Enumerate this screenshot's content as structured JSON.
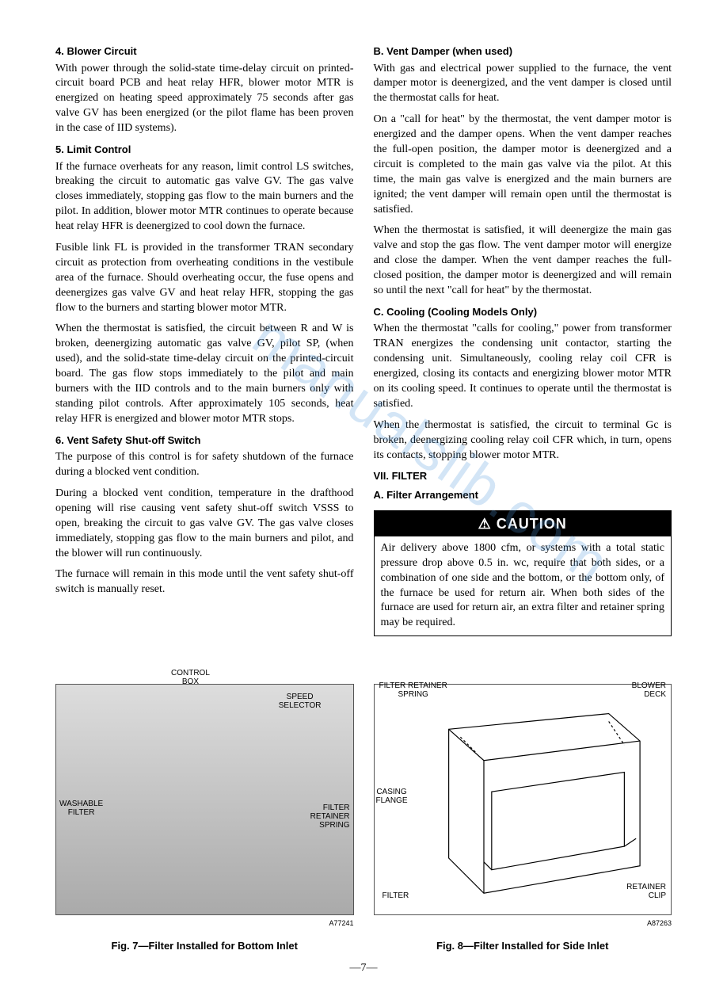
{
  "left": {
    "h4": "4. Blower Circuit",
    "p4": "With power through the solid-state time-delay circuit on printed-circuit board PCB and heat relay HFR, blower motor MTR is energized on heating speed approximately 75 seconds after gas valve GV has been energized (or the pilot flame has been proven in the case of IID systems).",
    "h5": "5. Limit Control",
    "p5a": "If the furnace overheats for any reason, limit control LS switches, breaking the circuit to automatic gas valve GV. The gas valve closes immediately, stopping gas flow to the main burners and the pilot. In addition, blower motor MTR continues to operate because heat relay HFR is deenergized to cool down the furnace.",
    "p5b": "Fusible link FL is provided in the transformer TRAN secondary circuit as protection from overheating conditions in the vestibule area of the furnace. Should overheating occur, the fuse opens and deenergizes gas valve GV and heat relay HFR, stopping the gas flow to the burners and starting blower motor MTR.",
    "p5c": "When the thermostat is satisfied, the circuit between R and W is broken, deenergizing automatic gas valve GV, pilot SP, (when used), and the solid-state time-delay circuit on the printed-circuit board. The gas flow stops immediately to the pilot and main burners with the IID controls and to the main burners only with standing pilot controls. After approximately 105 seconds, heat relay HFR is energized and blower motor MTR stops.",
    "h6": "6. Vent Safety Shut-off Switch",
    "p6a": "The purpose of this control is for safety shutdown of the furnace during a blocked vent condition.",
    "p6b": "During a blocked vent condition, temperature in the drafthood opening will rise causing vent safety shut-off switch VSSS to open, breaking the circuit to gas valve GV. The gas valve closes immediately, stopping gas flow to the main burners and pilot, and the blower will run continuously.",
    "p6c": "The furnace will remain in this mode until the vent safety shut-off switch is manually reset."
  },
  "right": {
    "hB": "B. Vent Damper (when used)",
    "pBa": "With gas and electrical power supplied to the furnace, the vent damper motor is deenergized, and the vent damper is closed until the thermostat calls for heat.",
    "pBb": "On a \"call for heat\" by the thermostat, the vent damper motor is energized and the damper opens. When the vent damper reaches the full-open position, the damper motor is deenergized and a circuit is completed to the main gas valve via the pilot. At this time, the main gas valve is energized and the main burners are ignited; the vent damper will remain open until the thermostat is satisfied.",
    "pBc": "When the thermostat is satisfied, it will deenergize the main gas valve and stop the gas flow. The vent damper motor will energize and close the damper. When the vent damper reaches the full-closed position, the damper motor is deenergized and will remain so until the next \"call for heat\" by the thermostat.",
    "hC": "C. Cooling (Cooling Models Only)",
    "pCa": "When the thermostat \"calls for cooling,\" power from transformer TRAN energizes the condensing unit contactor, starting the condensing unit. Simultaneously, cooling relay coil CFR is energized, closing its contacts and energizing blower motor MTR on its cooling speed. It continues to operate until the thermostat is satisfied.",
    "pCb": "When the thermostat is satisfied, the circuit to terminal Gc is broken, deenergizing cooling relay coil CFR which, in turn, opens its contacts, stopping blower motor MTR.",
    "hVII": "VII. FILTER",
    "hA": "A. Filter Arrangement",
    "caution_title": "⚠ CAUTION",
    "caution_body": "Air delivery above 1800 cfm, or systems with a total static pressure drop above 0.5 in. wc, require that both sides, or a combination of one side and the bottom, or the bottom only, of the furnace be used for return air. When both sides of the furnace are used for return air, an extra filter and retainer spring may be required."
  },
  "fig7": {
    "labels": {
      "control_box": "CONTROL\nBOX",
      "speed": "SPEED\nSELECTOR",
      "washable": "WASHABLE\nFILTER",
      "retainer": "FILTER\nRETAINER\nSPRING"
    },
    "code": "A77241",
    "caption": "Fig. 7—Filter Installed for Bottom Inlet"
  },
  "fig8": {
    "labels": {
      "spring": "FILTER RETAINER\nSPRING",
      "blower": "BLOWER\nDECK",
      "casing": "CASING\nFLANGE",
      "filter": "FILTER",
      "clip": "RETAINER\nCLIP"
    },
    "code": "A87263",
    "caption": "Fig. 8—Filter Installed for Side Inlet"
  },
  "page_number": "—7—",
  "watermark": "manualslib.com"
}
